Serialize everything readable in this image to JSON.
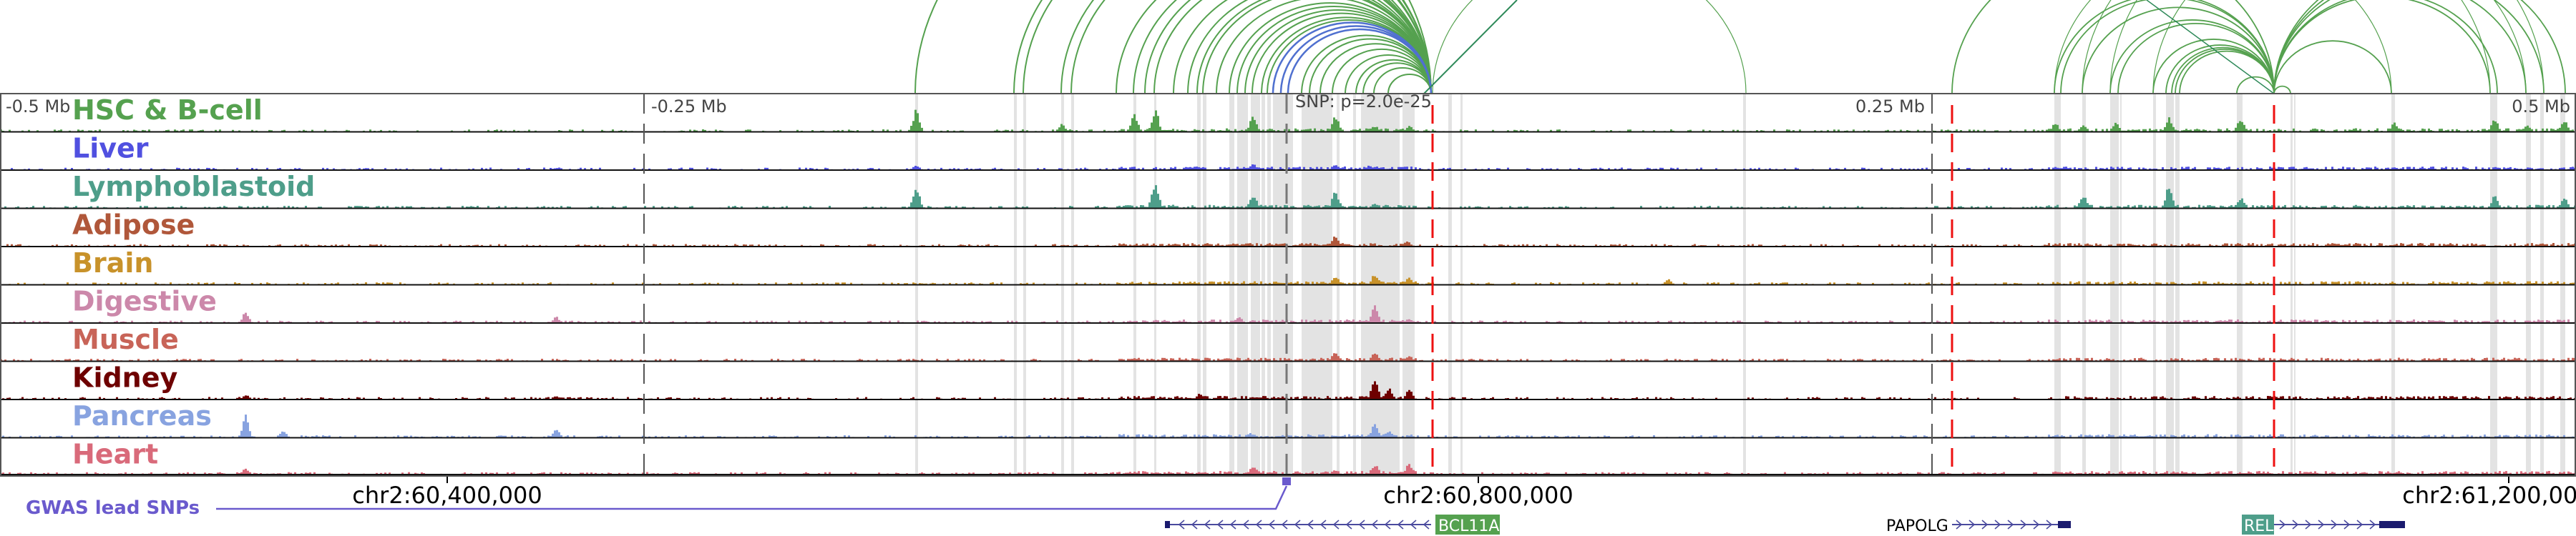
{
  "tracks": [
    {
      "name": "HSC & B-cell",
      "color": "#55a14f"
    },
    {
      "name": "Liver",
      "color": "#5050e0"
    },
    {
      "name": "Lymphoblastoid",
      "color": "#4e9e8a"
    },
    {
      "name": "Adipose",
      "color": "#b0573a"
    },
    {
      "name": "Brain",
      "color": "#c8922a"
    },
    {
      "name": "Digestive",
      "color": "#cc88aa"
    },
    {
      "name": "Muscle",
      "color": "#c86458"
    },
    {
      "name": "Kidney",
      "color": "#6e0000"
    },
    {
      "name": "Pancreas",
      "color": "#88a3e0"
    },
    {
      "name": "Heart",
      "color": "#d96a7a"
    }
  ],
  "offset_labels": {
    "m050": "-0.5 Mb",
    "m025": "-0.25 Mb",
    "p025": "0.25 Mb",
    "p050": "0.5 Mb"
  },
  "snp_label": "SNP: p=2.0e-25",
  "coordinates": {
    "c1": "chr2:60,400,000",
    "c2": "chr2:60,800,000",
    "c3": "chr2:61,200,000"
  },
  "gwas_label": "GWAS lead SNPs",
  "genes": {
    "bcl11a": {
      "name": "BCL11A",
      "strand": "-",
      "color": "#55a14f"
    },
    "papolg": {
      "name": "PAPOLG",
      "strand": "+"
    },
    "rel": {
      "name": "REL",
      "strand": "+",
      "color": "#4e9e8a"
    }
  },
  "colors": {
    "arc": "#55a14f",
    "arc_highlight": "#5070d0",
    "gene": "#1a1a6e",
    "gwas": "#6a5acd",
    "red_line": "#ee1111"
  }
}
